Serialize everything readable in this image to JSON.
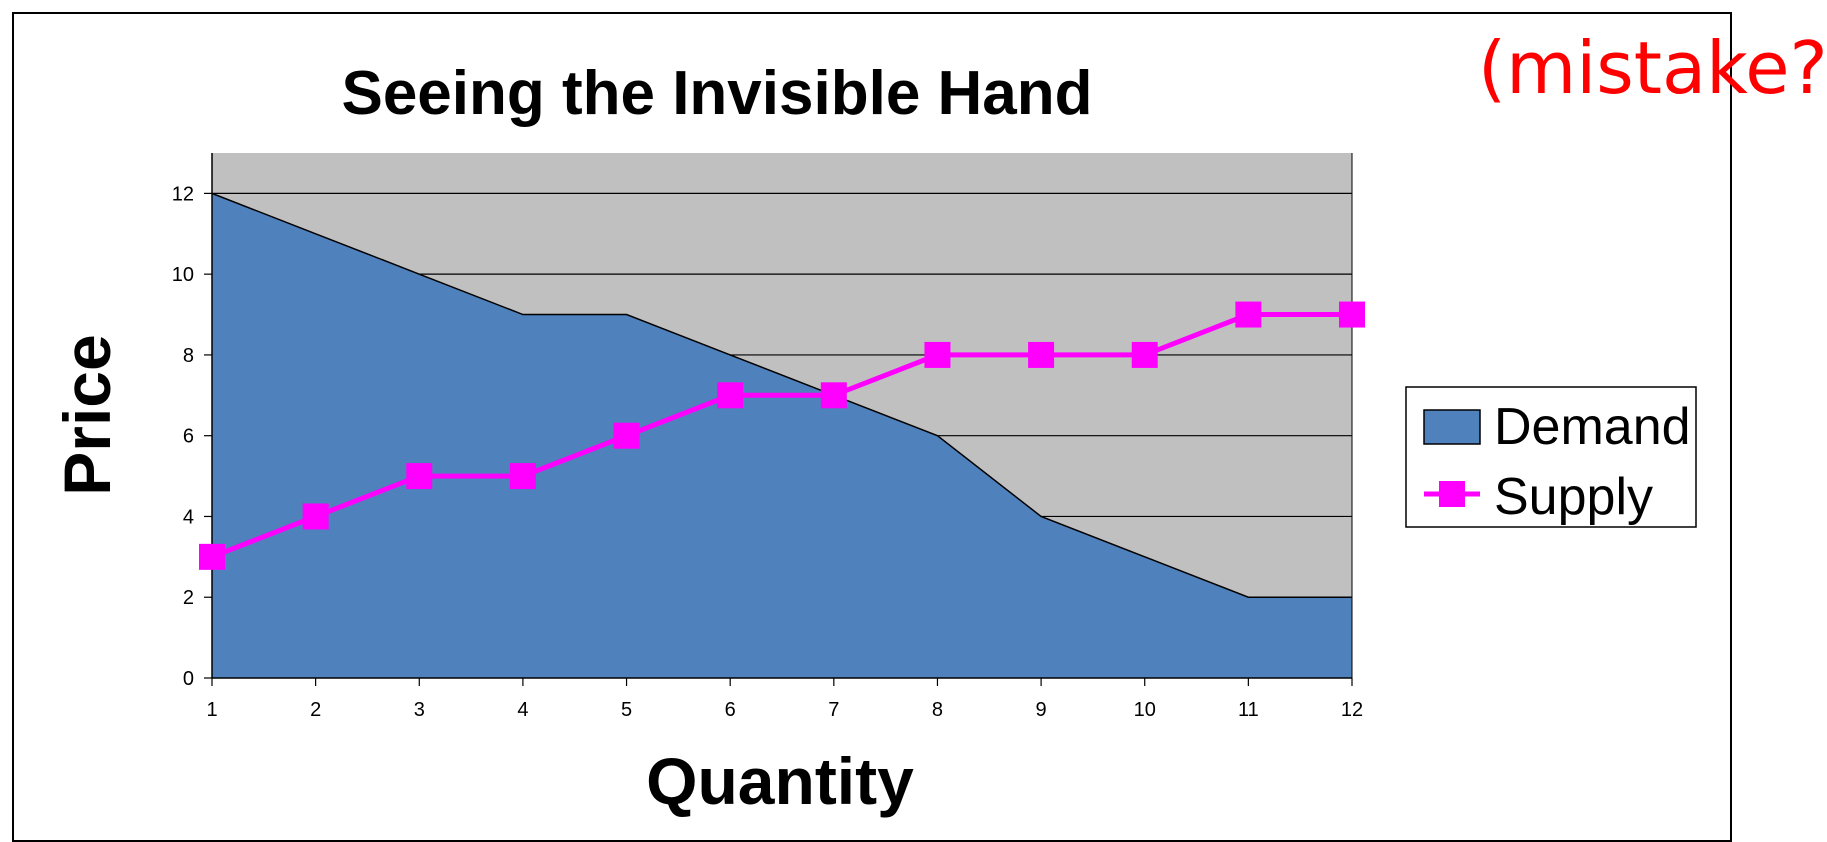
{
  "annotation": "(mistake?)",
  "colors": {
    "demand_fill": "#4f81bd",
    "supply_line": "#ff00ff",
    "plot_bg": "#c0c0c0"
  },
  "chart_data": {
    "type": "area",
    "title": "Seeing the Invisible Hand",
    "xlabel": "Quantity",
    "ylabel": "Price",
    "x": [
      1,
      2,
      3,
      4,
      5,
      6,
      7,
      8,
      9,
      10,
      11,
      12
    ],
    "xlim": [
      1,
      12
    ],
    "ylim": [
      0,
      13
    ],
    "y_ticks": [
      0,
      2,
      4,
      6,
      8,
      10,
      12
    ],
    "grid": true,
    "legend_position": "right",
    "series": [
      {
        "name": "Demand",
        "kind": "area",
        "color": "#4f81bd",
        "values": [
          12,
          11,
          10,
          9,
          9,
          8,
          7,
          6,
          4,
          3,
          2,
          2
        ]
      },
      {
        "name": "Supply",
        "kind": "line-square-markers",
        "color": "#ff00ff",
        "values": [
          3,
          4,
          5,
          5,
          6,
          7,
          7,
          8,
          8,
          8,
          9,
          9
        ]
      }
    ]
  }
}
